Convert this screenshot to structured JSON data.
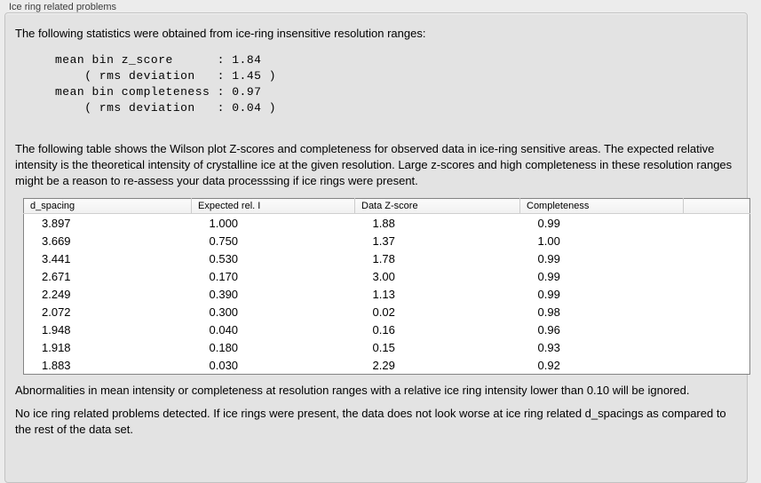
{
  "panel": {
    "title": "Ice ring related problems"
  },
  "intro": {
    "text": "The following statistics were obtained from ice-ring insensitive resolution ranges:"
  },
  "stats_block": {
    "lines": [
      "mean bin z_score      : 1.84",
      "    ( rms deviation   : 1.45 )",
      "mean bin completeness : 0.97",
      "    ( rms deviation   : 0.04 )"
    ]
  },
  "description": {
    "text": "The following table shows the Wilson plot Z-scores and completeness for observed data in ice-ring sensitive areas. The expected relative intensity is the theoretical intensity of crystalline ice at the given resolution. Large z-scores and high completeness in these resolution ranges might be a reason to re-assess your data processsing if ice rings were present."
  },
  "table": {
    "columns": [
      "d_spacing",
      "Expected rel. I",
      "Data Z-score",
      "Completeness",
      ""
    ],
    "rows": [
      [
        "3.897",
        "1.000",
        "1.88",
        "0.99"
      ],
      [
        "3.669",
        "0.750",
        "1.37",
        "1.00"
      ],
      [
        "3.441",
        "0.530",
        "1.78",
        "0.99"
      ],
      [
        "2.671",
        "0.170",
        "3.00",
        "0.99"
      ],
      [
        "2.249",
        "0.390",
        "1.13",
        "0.99"
      ],
      [
        "2.072",
        "0.300",
        "0.02",
        "0.98"
      ],
      [
        "1.948",
        "0.040",
        "0.16",
        "0.96"
      ],
      [
        "1.918",
        "0.180",
        "0.15",
        "0.93"
      ],
      [
        "1.883",
        "0.030",
        "2.29",
        "0.92"
      ]
    ]
  },
  "notes": {
    "ignore_note": "Abnormalities in mean intensity or completeness at resolution ranges with a relative ice ring intensity lower than 0.10 will be ignored.",
    "conclusion": "No ice ring related problems detected. If ice rings were present, the data does not look worse at ice ring related d_spacings as compared to the rest of the data set."
  },
  "colors": {
    "window_bg": "#ececec",
    "groupbox_bg": "#e3e3e3",
    "groupbox_border": "#c2c2c2",
    "table_border": "#848484",
    "table_header_bg": "#f5f5f5",
    "table_body_bg": "#ffffff",
    "text": "#000000"
  }
}
